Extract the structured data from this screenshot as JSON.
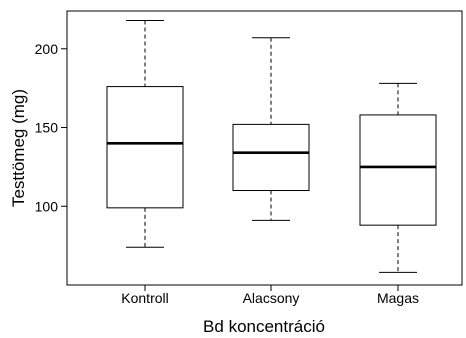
{
  "chart_data": {
    "type": "box",
    "title": "",
    "xlabel": "Bd koncentráció",
    "ylabel": "Testtömeg (mg)",
    "categories": [
      "Kontroll",
      "Alacsony",
      "Magas"
    ],
    "boxes": [
      {
        "min": 74,
        "q1": 99,
        "median": 140,
        "q3": 176,
        "max": 218
      },
      {
        "min": 91,
        "q1": 110,
        "median": 134,
        "q3": 152,
        "max": 207
      },
      {
        "min": 58,
        "q1": 88,
        "median": 125,
        "q3": 158,
        "max": 178
      }
    ],
    "yticks": [
      100,
      150,
      200
    ],
    "ylim": [
      50,
      224
    ],
    "grid": false,
    "colors": {
      "box_fill": "#ffffff",
      "stroke": "#000000"
    }
  }
}
